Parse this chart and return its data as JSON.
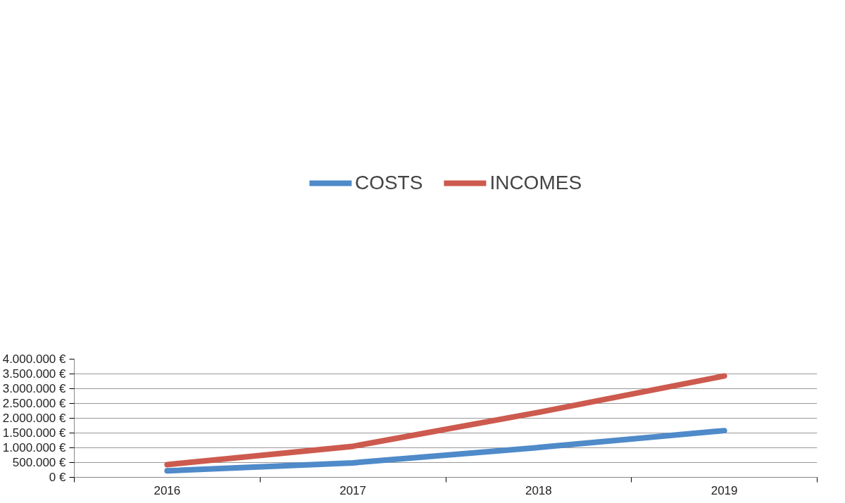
{
  "chart_data": {
    "type": "line",
    "categories": [
      "2016",
      "2017",
      "2018",
      "2019"
    ],
    "series": [
      {
        "name": "COSTS",
        "color": "#4f8ac9",
        "values": [
          220000,
          490000,
          1010000,
          1580000
        ]
      },
      {
        "name": "INCOMES",
        "color": "#cd5a4e",
        "values": [
          430000,
          1050000,
          2200000,
          3430000
        ]
      }
    ],
    "ylim": [
      0,
      4000000
    ],
    "yticks": [
      {
        "value": 0,
        "label": "0 €"
      },
      {
        "value": 500000,
        "label": "500.000 €"
      },
      {
        "value": 1000000,
        "label": "1.000.000 €"
      },
      {
        "value": 1500000,
        "label": "1.500.000 €"
      },
      {
        "value": 2000000,
        "label": "2.000.000 €"
      },
      {
        "value": 2500000,
        "label": "2.500.000 €"
      },
      {
        "value": 3000000,
        "label": "3.000.000 €"
      },
      {
        "value": 3500000,
        "label": "3.500.000 €"
      },
      {
        "value": 4000000,
        "label": "4.000.000 €"
      }
    ],
    "grid": "y",
    "legend": "top",
    "marker": "none",
    "line_style": "solid"
  }
}
